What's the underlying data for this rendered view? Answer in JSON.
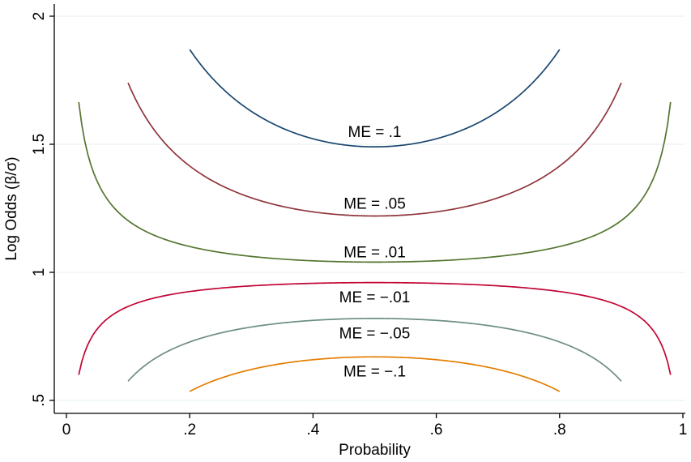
{
  "chart_data": {
    "type": "line",
    "xlabel": "Probability",
    "ylabel": "Log Odds (β/σ)",
    "xlim": [
      0,
      1
    ],
    "ylim": [
      0.5,
      2
    ],
    "grid": true,
    "x_ticks": [
      {
        "value": 0,
        "label": "0"
      },
      {
        "value": 0.2,
        "label": ".2"
      },
      {
        "value": 0.4,
        "label": ".4"
      },
      {
        "value": 0.6,
        "label": ".6"
      },
      {
        "value": 0.8,
        "label": ".8"
      },
      {
        "value": 1,
        "label": "1"
      }
    ],
    "y_ticks": [
      {
        "value": 0.5,
        "label": ".5"
      },
      {
        "value": 1,
        "label": "1"
      },
      {
        "value": 1.5,
        "label": "1.5"
      },
      {
        "value": 2,
        "label": "2"
      }
    ],
    "series": [
      {
        "name": "ME = .1",
        "color": "#1a476f",
        "x_range": [
          0.2,
          0.8
        ],
        "min_x": 0.5,
        "min_y": 1.49,
        "end_y": 1.87,
        "label_at": [
          0.5,
          1.55
        ]
      },
      {
        "name": "ME = .05",
        "color": "#90353b",
        "x_range": [
          0.1,
          0.9
        ],
        "min_x": 0.5,
        "min_y": 1.22,
        "end_y": 1.74,
        "label_at": [
          0.5,
          1.27
        ]
      },
      {
        "name": "ME = .01",
        "color": "#55752f",
        "x_range": [
          0.02,
          0.98
        ],
        "min_x": 0.5,
        "min_y": 1.04,
        "end_y": 1.665,
        "label_at": [
          0.5,
          1.08
        ]
      },
      {
        "name": "ME = −.01",
        "color": "#c10534",
        "x_range": [
          0.02,
          0.98
        ],
        "max_x": 0.5,
        "max_y": 0.96,
        "end_y": 0.6,
        "label_at": [
          0.5,
          0.905
        ]
      },
      {
        "name": "ME = −.05",
        "color": "#6e8e84",
        "x_range": [
          0.1,
          0.9
        ],
        "max_x": 0.5,
        "max_y": 0.82,
        "end_y": 0.575,
        "label_at": [
          0.5,
          0.765
        ]
      },
      {
        "name": "ME = −.1",
        "color": "#e37e00",
        "x_range": [
          0.2,
          0.8
        ],
        "max_x": 0.5,
        "max_y": 0.67,
        "end_y": 0.535,
        "label_at": [
          0.5,
          0.615
        ]
      }
    ]
  }
}
